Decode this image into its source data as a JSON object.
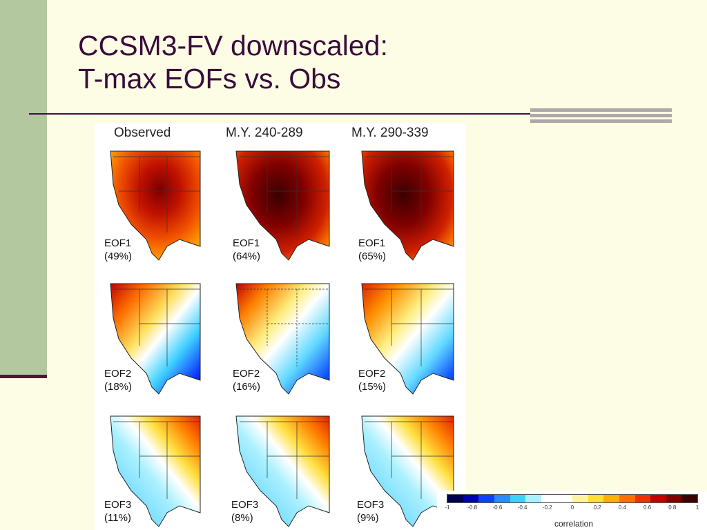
{
  "slide": {
    "title_line1": "CCSM3-FV downscaled:",
    "title_line2": "T-max EOFs vs. Obs"
  },
  "figure": {
    "columns": [
      "Observed",
      "M.Y. 240-289",
      "M.Y. 290-339"
    ],
    "rows": [
      {
        "eof": "EOF1",
        "panels": [
          {
            "name": "EOF1",
            "pct": "(49%)"
          },
          {
            "name": "EOF1",
            "pct": "(64%)"
          },
          {
            "name": "EOF1",
            "pct": "(65%)"
          }
        ]
      },
      {
        "eof": "EOF2",
        "panels": [
          {
            "name": "EOF2",
            "pct": "(18%)"
          },
          {
            "name": "EOF2",
            "pct": "(16%)"
          },
          {
            "name": "EOF2",
            "pct": "(15%)"
          }
        ]
      },
      {
        "eof": "EOF3",
        "panels": [
          {
            "name": "EOF3",
            "pct": "(11%)"
          },
          {
            "name": "EOF3",
            "pct": "(8%)"
          },
          {
            "name": "EOF3",
            "pct": "(9%)"
          }
        ]
      }
    ],
    "colorbar": {
      "label": "correlation",
      "ticks": [
        "-1",
        "-0.8",
        "-0.6",
        "-0.4",
        "-0.2",
        "0",
        "0.2",
        "0.4",
        "0.6",
        "0.8",
        "1"
      ],
      "colors": [
        "#00004e",
        "#0000b4",
        "#1040ff",
        "#2a8cff",
        "#40d0ff",
        "#aaf0ff",
        "#ffffff",
        "#ffffff",
        "#fff3a0",
        "#ffe030",
        "#ffb000",
        "#ff7000",
        "#f03000",
        "#c00000",
        "#800000",
        "#3a0000"
      ]
    }
  }
}
